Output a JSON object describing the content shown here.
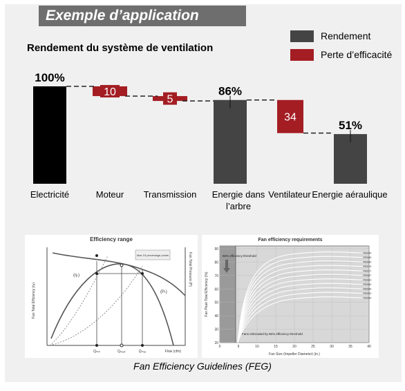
{
  "header": {
    "title": "Exemple d’application"
  },
  "colors": {
    "rendement": "#444444",
    "perte": "#a31d23",
    "header_bg": "#6e6e6e",
    "panel_bg": "#f0f0f0"
  },
  "chart_data": {
    "type": "bar",
    "subtype": "waterfall",
    "title": "Rendement du système de ventilation",
    "legend": [
      {
        "name": "Rendement",
        "color": "#444444"
      },
      {
        "name": "Perte d’efficacité",
        "color": "#a31d23"
      }
    ],
    "legend_position": "top-right",
    "ylim": [
      0,
      100
    ],
    "grid": false,
    "steps": [
      {
        "category": "Electricité",
        "kind": "total",
        "value": 100,
        "label": "100%"
      },
      {
        "category": "Moteur",
        "kind": "loss",
        "value": 10,
        "label": "10"
      },
      {
        "category": "Transmission",
        "kind": "loss",
        "value": 5,
        "label": "5"
      },
      {
        "category": "Energie dans l’arbre",
        "kind": "total",
        "value": 86,
        "label": "86%"
      },
      {
        "category": "Ventilateur",
        "kind": "loss",
        "value": 34,
        "label": "34"
      },
      {
        "category": "Energie aéraulique",
        "kind": "total",
        "value": 51,
        "label": "51%"
      }
    ]
  },
  "figures": {
    "left": {
      "title": "Efficiency range",
      "ylabel_left": "Fan Total Efficiency (ηₜ)",
      "ylabel_right": "Fan Total Pressure (P)",
      "xlabel": "Flow (cfm)",
      "annotation": "Max 15 percentage points",
      "label_eta": "(ηₜ)",
      "label_p": "(Pₜ)",
      "q_labels": [
        "Qₘᵢₙ",
        "Qₚₑₐₖ",
        "Qₘₐₓ"
      ]
    },
    "right": {
      "title": "Fan efficiency requirements",
      "ylabel": "Fan Peak Total Efficiency (%)",
      "xlabel": "Fan Size (Impeller Diameter) (in.)",
      "threshold_label": "65% efficiency threshold",
      "eliminated_label": "Fans eliminated by 65% efficiency threshold",
      "y_ticks": [
        "90",
        "80",
        "70",
        "60",
        "50",
        "40",
        "30",
        "20"
      ],
      "x_ticks": [
        "0",
        "5",
        "10",
        "15",
        "20",
        "25",
        "30",
        "35",
        "40"
      ],
      "feg_labels": [
        "FEG90",
        "FEG85",
        "FEG80",
        "FEG75",
        "FEG71",
        "FEG67",
        "FEG63",
        "FEG60",
        "FEG56",
        "FEG53",
        "FEG50"
      ]
    }
  },
  "caption": "Fan Efficiency Guidelines (FEG)"
}
